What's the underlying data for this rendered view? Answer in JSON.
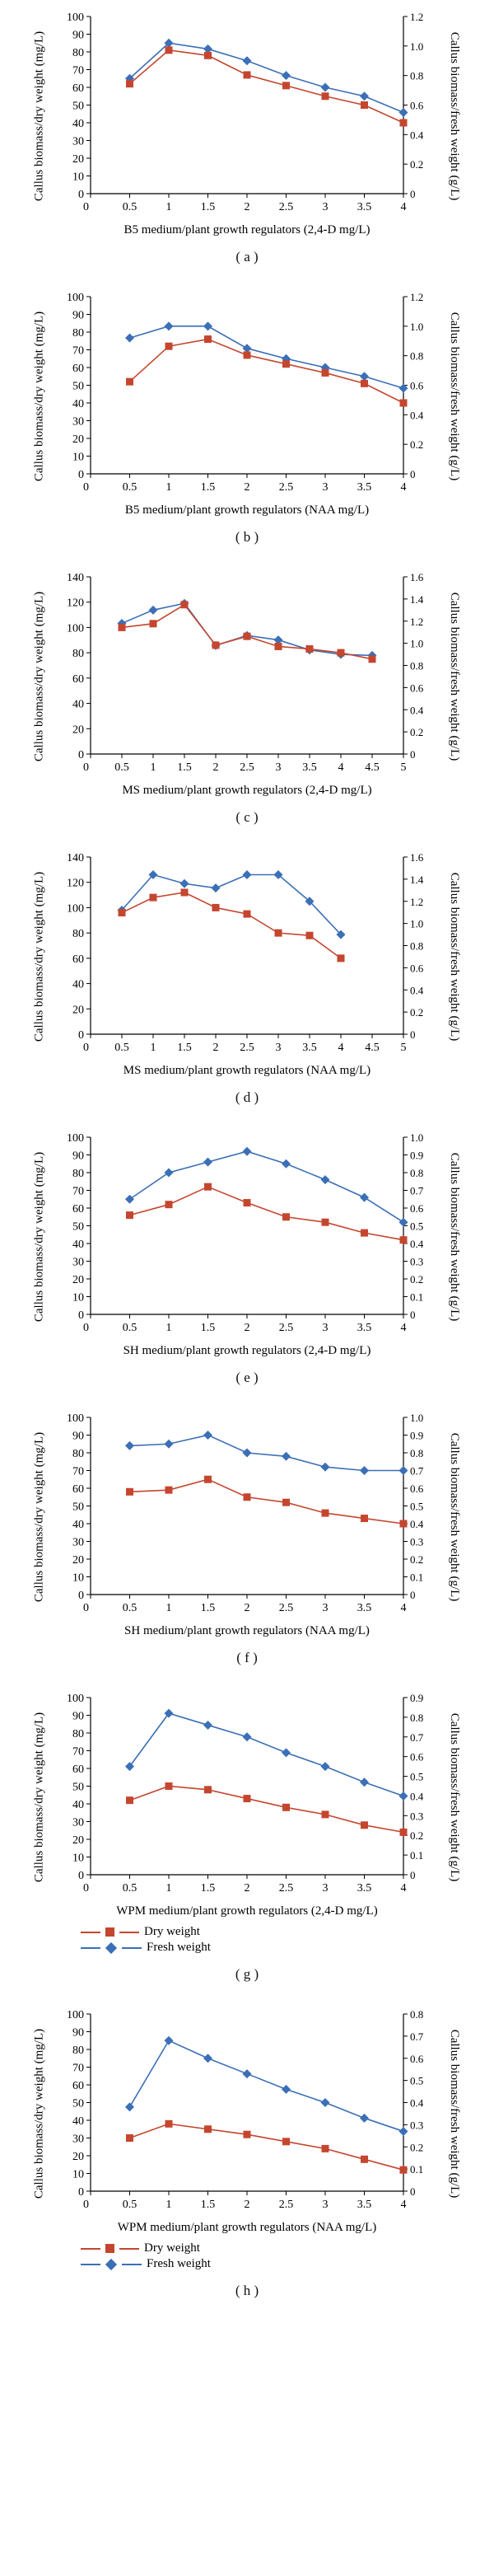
{
  "colors": {
    "dry": "#c5462f",
    "fresh": "#3b6fb6",
    "axis": "#000000",
    "background": "#ffffff"
  },
  "marker": {
    "dry_shape": "square",
    "fresh_shape": "diamond",
    "size": 4.5,
    "line_width": 1.6
  },
  "legend": {
    "dry": "Dry weight",
    "fresh": "Fresh weight"
  },
  "common_axis_fontsize": 15,
  "tick_fontsize": 14,
  "panels": [
    {
      "id": "a",
      "letter": "( a )",
      "xlabel": "B5 medium/plant growth regulators (2,4-D mg/L)",
      "ylabel_left": "Callus biomass/dry weight (mg/L)",
      "ylabel_right": "Callus biomass/fresh weight (g/L)",
      "xlim": [
        0,
        4
      ],
      "xtick_step": 0.5,
      "ylim_left": [
        0,
        100
      ],
      "ytick_left_step": 10,
      "ylim_right": [
        0,
        1.2
      ],
      "ytick_right_step": 0.2,
      "x": [
        0.5,
        1.0,
        1.5,
        2.0,
        2.5,
        3.0,
        3.5,
        4.0
      ],
      "dry": [
        62,
        81,
        78,
        67,
        61,
        55,
        50,
        40
      ],
      "fresh": [
        0.78,
        1.02,
        0.98,
        0.9,
        0.8,
        0.72,
        0.66,
        0.55
      ],
      "show_legend": false
    },
    {
      "id": "b",
      "letter": "( b )",
      "xlabel": "B5 medium/plant growth regulators (NAA mg/L)",
      "ylabel_left": "Callus biomass/dry weight (mg/L)",
      "ylabel_right": "Callus biomass/fresh weight (g/L)",
      "xlim": [
        0,
        4
      ],
      "xtick_step": 0.5,
      "ylim_left": [
        0,
        100
      ],
      "ytick_left_step": 10,
      "ylim_right": [
        0,
        1.2
      ],
      "ytick_right_step": 0.2,
      "x": [
        0.5,
        1.0,
        1.5,
        2.0,
        2.5,
        3.0,
        3.5,
        4.0
      ],
      "dry": [
        52,
        72,
        76,
        67,
        62,
        57,
        51,
        40
      ],
      "fresh": [
        0.92,
        1.0,
        1.0,
        0.85,
        0.78,
        0.72,
        0.66,
        0.58
      ],
      "show_legend": false
    },
    {
      "id": "c",
      "letter": "( c )",
      "xlabel": "MS medium/plant growth regulators (2,4-D mg/L)",
      "ylabel_left": "Callus biomass/dry weight (mg/L)",
      "ylabel_right": "Callus biomass/fresh weight (g/L)",
      "xlim": [
        0,
        5
      ],
      "xtick_step": 0.5,
      "ylim_left": [
        0,
        140
      ],
      "ytick_left_step": 20,
      "ylim_right": [
        0,
        1.6
      ],
      "ytick_right_step": 0.2,
      "x": [
        0.5,
        1.0,
        1.5,
        2.0,
        2.5,
        3.0,
        3.5,
        4.0,
        4.5
      ],
      "dry": [
        100,
        103,
        118,
        86,
        93,
        85,
        83,
        80,
        75
      ],
      "fresh": [
        1.18,
        1.3,
        1.36,
        0.98,
        1.07,
        1.03,
        0.94,
        0.9,
        0.89
      ],
      "show_legend": false
    },
    {
      "id": "d",
      "letter": "( d )",
      "xlabel": "MS medium/plant growth regulators (NAA mg/L)",
      "ylabel_left": "Callus biomass/dry weight (mg/L)",
      "ylabel_right": "Callus biomass/fresh weight (g/L)",
      "xlim": [
        0,
        5
      ],
      "xtick_step": 0.5,
      "ylim_left": [
        0,
        140
      ],
      "ytick_left_step": 20,
      "ylim_right": [
        0,
        1.6
      ],
      "ytick_right_step": 0.2,
      "x": [
        0.5,
        1.0,
        1.5,
        2.0,
        2.5,
        3.0,
        3.5,
        4.0
      ],
      "dry": [
        96,
        108,
        112,
        100,
        95,
        80,
        78,
        60
      ],
      "fresh": [
        1.12,
        1.44,
        1.36,
        1.32,
        1.44,
        1.44,
        1.2,
        0.9
      ],
      "show_legend": false
    },
    {
      "id": "e",
      "letter": "( e )",
      "xlabel": "SH medium/plant growth regulators (2,4-D mg/L)",
      "ylabel_left": "Callus biomass/dry weight (mg/L)",
      "ylabel_right": "Callus biomass/fresh weight (g/L)",
      "xlim": [
        0,
        4
      ],
      "xtick_step": 0.5,
      "ylim_left": [
        0,
        100
      ],
      "ytick_left_step": 10,
      "ylim_right": [
        0,
        1.0
      ],
      "ytick_right_step": 0.1,
      "x": [
        0.5,
        1.0,
        1.5,
        2.0,
        2.5,
        3.0,
        3.5,
        4.0
      ],
      "dry": [
        56,
        62,
        72,
        63,
        55,
        52,
        46,
        42
      ],
      "fresh": [
        0.65,
        0.8,
        0.86,
        0.92,
        0.85,
        0.76,
        0.66,
        0.52
      ],
      "show_legend": false
    },
    {
      "id": "f",
      "letter": "( f )",
      "xlabel": "SH medium/plant growth regulators (NAA mg/L)",
      "ylabel_left": "Callus biomass/dry weight (mg/L)",
      "ylabel_right": "Callus biomass/fresh weight (g/L)",
      "xlim": [
        0,
        4
      ],
      "xtick_step": 0.5,
      "ylim_left": [
        0,
        100
      ],
      "ytick_left_step": 10,
      "ylim_right": [
        0,
        1.0
      ],
      "ytick_right_step": 0.1,
      "x": [
        0.5,
        1.0,
        1.5,
        2.0,
        2.5,
        3.0,
        3.5,
        4.0
      ],
      "dry": [
        58,
        59,
        65,
        55,
        52,
        46,
        43,
        40
      ],
      "fresh": [
        0.84,
        0.85,
        0.9,
        0.8,
        0.78,
        0.72,
        0.7,
        0.7
      ],
      "show_legend": false
    },
    {
      "id": "g",
      "letter": "( g )",
      "xlabel": "WPM medium/plant growth regulators (2,4-D mg/L)",
      "ylabel_left": "Callus biomass/dry weight (mg/L)",
      "ylabel_right": "Callus biomass/fresh weight (g/L)",
      "xlim": [
        0,
        4
      ],
      "xtick_step": 0.5,
      "ylim_left": [
        0,
        100
      ],
      "ytick_left_step": 10,
      "ylim_right": [
        0,
        0.9
      ],
      "ytick_right_step": 0.1,
      "x": [
        0.5,
        1.0,
        1.5,
        2.0,
        2.5,
        3.0,
        3.5,
        4.0
      ],
      "dry": [
        42,
        50,
        48,
        43,
        38,
        34,
        28,
        24
      ],
      "fresh": [
        0.55,
        0.82,
        0.76,
        0.7,
        0.62,
        0.55,
        0.47,
        0.4
      ],
      "show_legend": true
    },
    {
      "id": "h",
      "letter": "( h )",
      "xlabel": "WPM medium/plant growth regulators (NAA mg/L)",
      "ylabel_left": "Callus biomass/dry weight (mg/L)",
      "ylabel_right": "Callus biomass/fresh weight (g/L)",
      "xlim": [
        0,
        4
      ],
      "xtick_step": 0.5,
      "ylim_left": [
        0,
        100
      ],
      "ytick_left_step": 10,
      "ylim_right": [
        0,
        0.8
      ],
      "ytick_right_step": 0.1,
      "x": [
        0.5,
        1.0,
        1.5,
        2.0,
        2.5,
        3.0,
        3.5,
        4.0
      ],
      "dry": [
        30,
        38,
        35,
        32,
        28,
        24,
        18,
        12
      ],
      "fresh": [
        0.38,
        0.68,
        0.6,
        0.53,
        0.46,
        0.4,
        0.33,
        0.27
      ],
      "show_legend": true
    }
  ]
}
